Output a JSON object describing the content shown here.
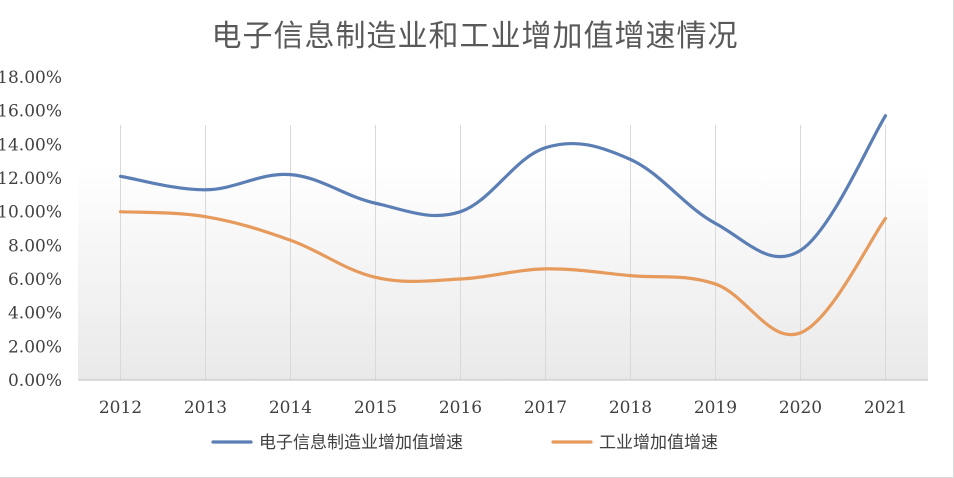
{
  "chart_data": {
    "type": "line",
    "title": "电子信息制造业和工业增加值增速情况",
    "xlabel": "",
    "ylabel": "",
    "categories": [
      "2012",
      "2013",
      "2014",
      "2015",
      "2016",
      "2017",
      "2018",
      "2019",
      "2020",
      "2021"
    ],
    "ylim": [
      0,
      18
    ],
    "yticks": [
      "0.00%",
      "2.00%",
      "4.00%",
      "6.00%",
      "8.00%",
      "10.00%",
      "12.00%",
      "14.00%",
      "16.00%",
      "18.00%"
    ],
    "grid": "vertical",
    "legend_position": "bottom",
    "series": [
      {
        "name": "电子信息制造业增加值增速",
        "color": "#5b7fb5",
        "values": [
          12.1,
          11.3,
          12.2,
          10.5,
          10.0,
          13.8,
          13.1,
          9.3,
          7.7,
          15.7
        ]
      },
      {
        "name": "工业增加值增速",
        "color": "#e69a5c",
        "values": [
          10.0,
          9.7,
          8.3,
          6.1,
          6.0,
          6.6,
          6.2,
          5.7,
          2.8,
          9.6
        ]
      }
    ]
  }
}
